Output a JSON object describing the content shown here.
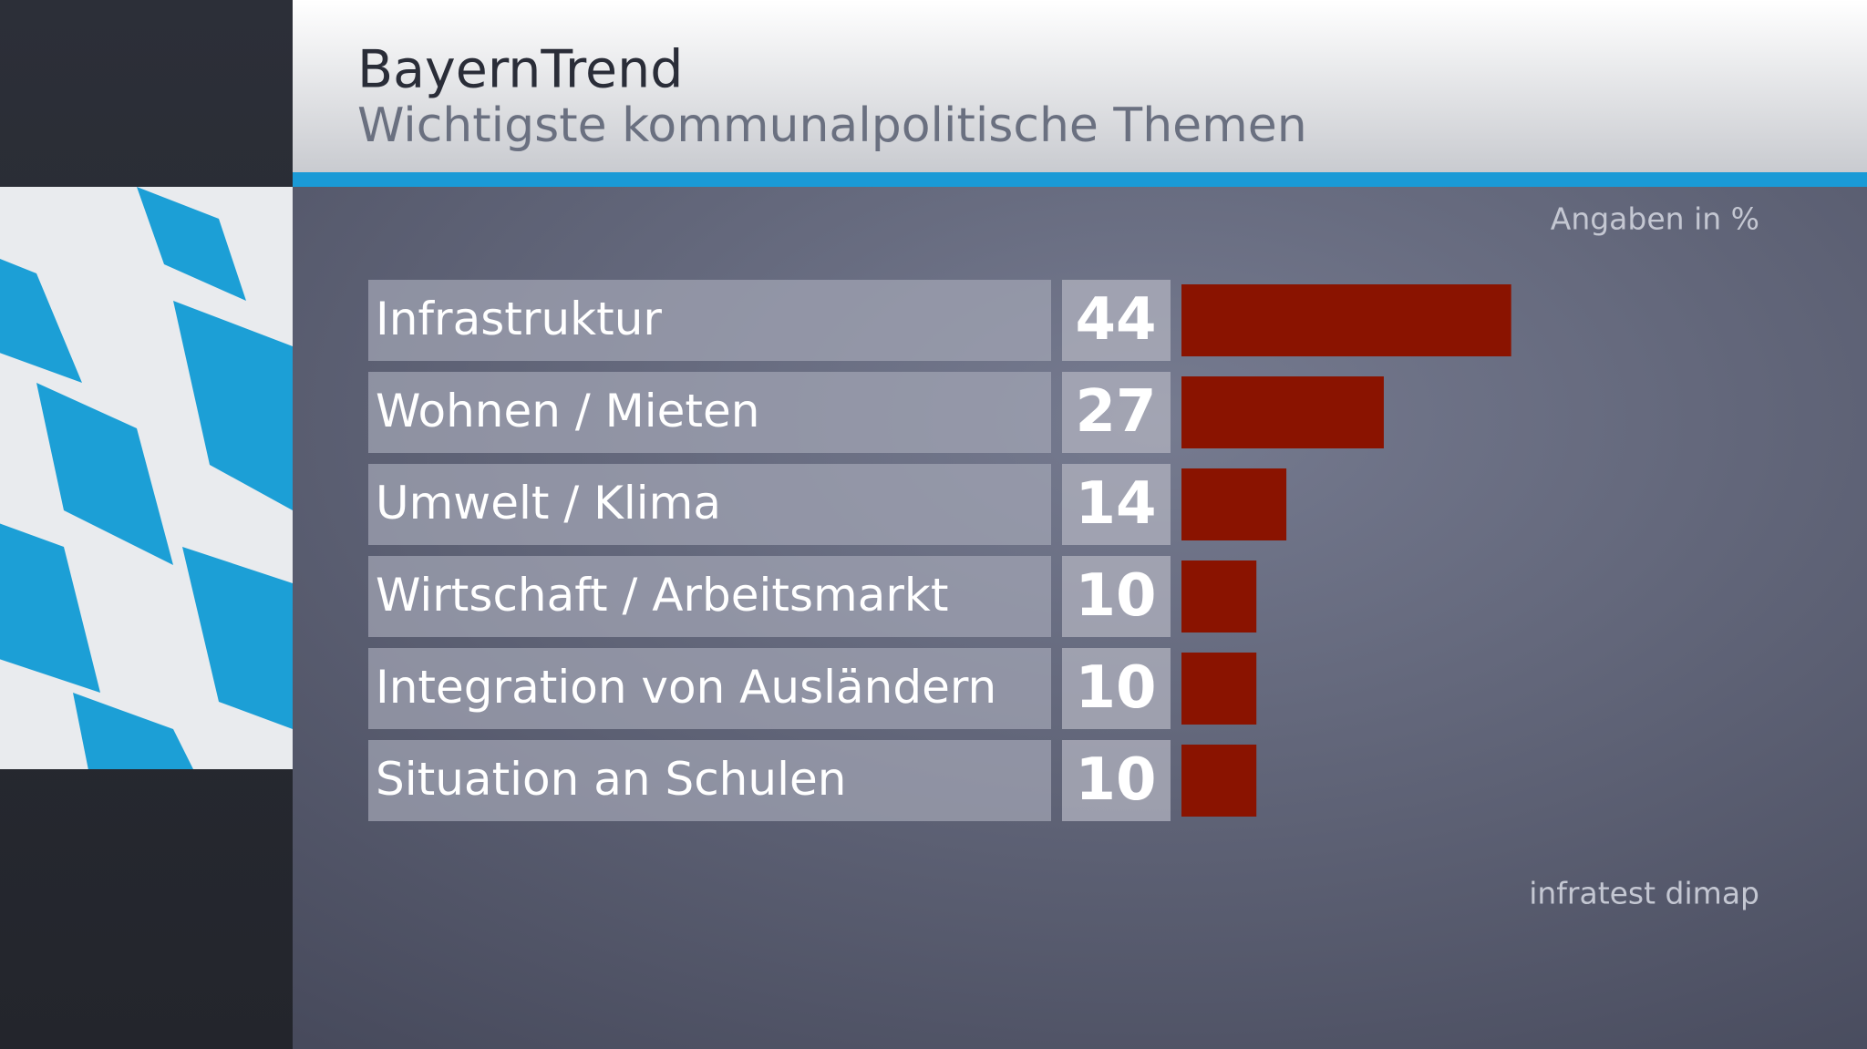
{
  "chart_data": {
    "type": "bar",
    "title": "BayernTrend",
    "subtitle": "Wichtigste kommunalpolitische Themen",
    "unit_note": "Angaben in %",
    "source": "infratest dimap",
    "categories": [
      "Infrastruktur",
      "Wohnen / Mieten",
      "Umwelt / Klima",
      "Wirtschaft / Arbeitsmarkt",
      "Integration von Ausländern",
      "Situation an Schulen"
    ],
    "values": [
      44,
      27,
      14,
      10,
      10,
      10
    ],
    "color": "#8a1300"
  }
}
